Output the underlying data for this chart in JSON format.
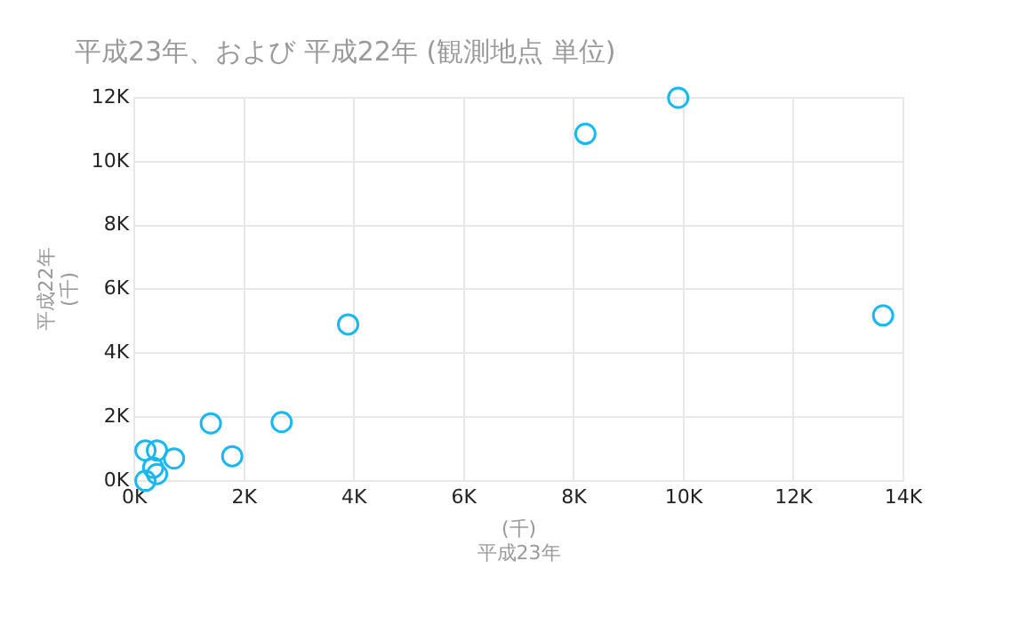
{
  "chart_data": {
    "type": "scatter",
    "title": "平成23年、および 平成22年 (観測地点 単位)",
    "xlabel": "(千)\n平成23年",
    "ylabel": "平成22年\n(千)",
    "x": [
      200,
      410,
      720,
      340,
      410,
      200,
      1390,
      1780,
      2680,
      3890,
      8210,
      9900,
      13630
    ],
    "values": [
      950,
      950,
      700,
      410,
      210,
      0,
      1800,
      770,
      1840,
      4900,
      10870,
      12000,
      5180
    ],
    "color": "#1ab8f0",
    "marker": "circle",
    "grid": true,
    "xlim": [
      0,
      14000
    ],
    "xticks": [
      {
        "value": 0,
        "label": "0K"
      },
      {
        "value": 2000,
        "label": "2K"
      },
      {
        "value": 4000,
        "label": "4K"
      },
      {
        "value": 6000,
        "label": "6K"
      },
      {
        "value": 8000,
        "label": "8K"
      },
      {
        "value": 10000,
        "label": "10K"
      },
      {
        "value": 12000,
        "label": "12K"
      },
      {
        "value": 14000,
        "label": "14K"
      }
    ],
    "ylim": [
      0,
      12000
    ],
    "yticks": [
      {
        "value": 0,
        "label": "0K"
      },
      {
        "value": 2000,
        "label": "2K"
      },
      {
        "value": 4000,
        "label": "4K"
      },
      {
        "value": 6000,
        "label": "6K"
      },
      {
        "value": 8000,
        "label": "8K"
      },
      {
        "value": 10000,
        "label": "10K"
      },
      {
        "value": 12000,
        "label": "12K"
      }
    ]
  }
}
